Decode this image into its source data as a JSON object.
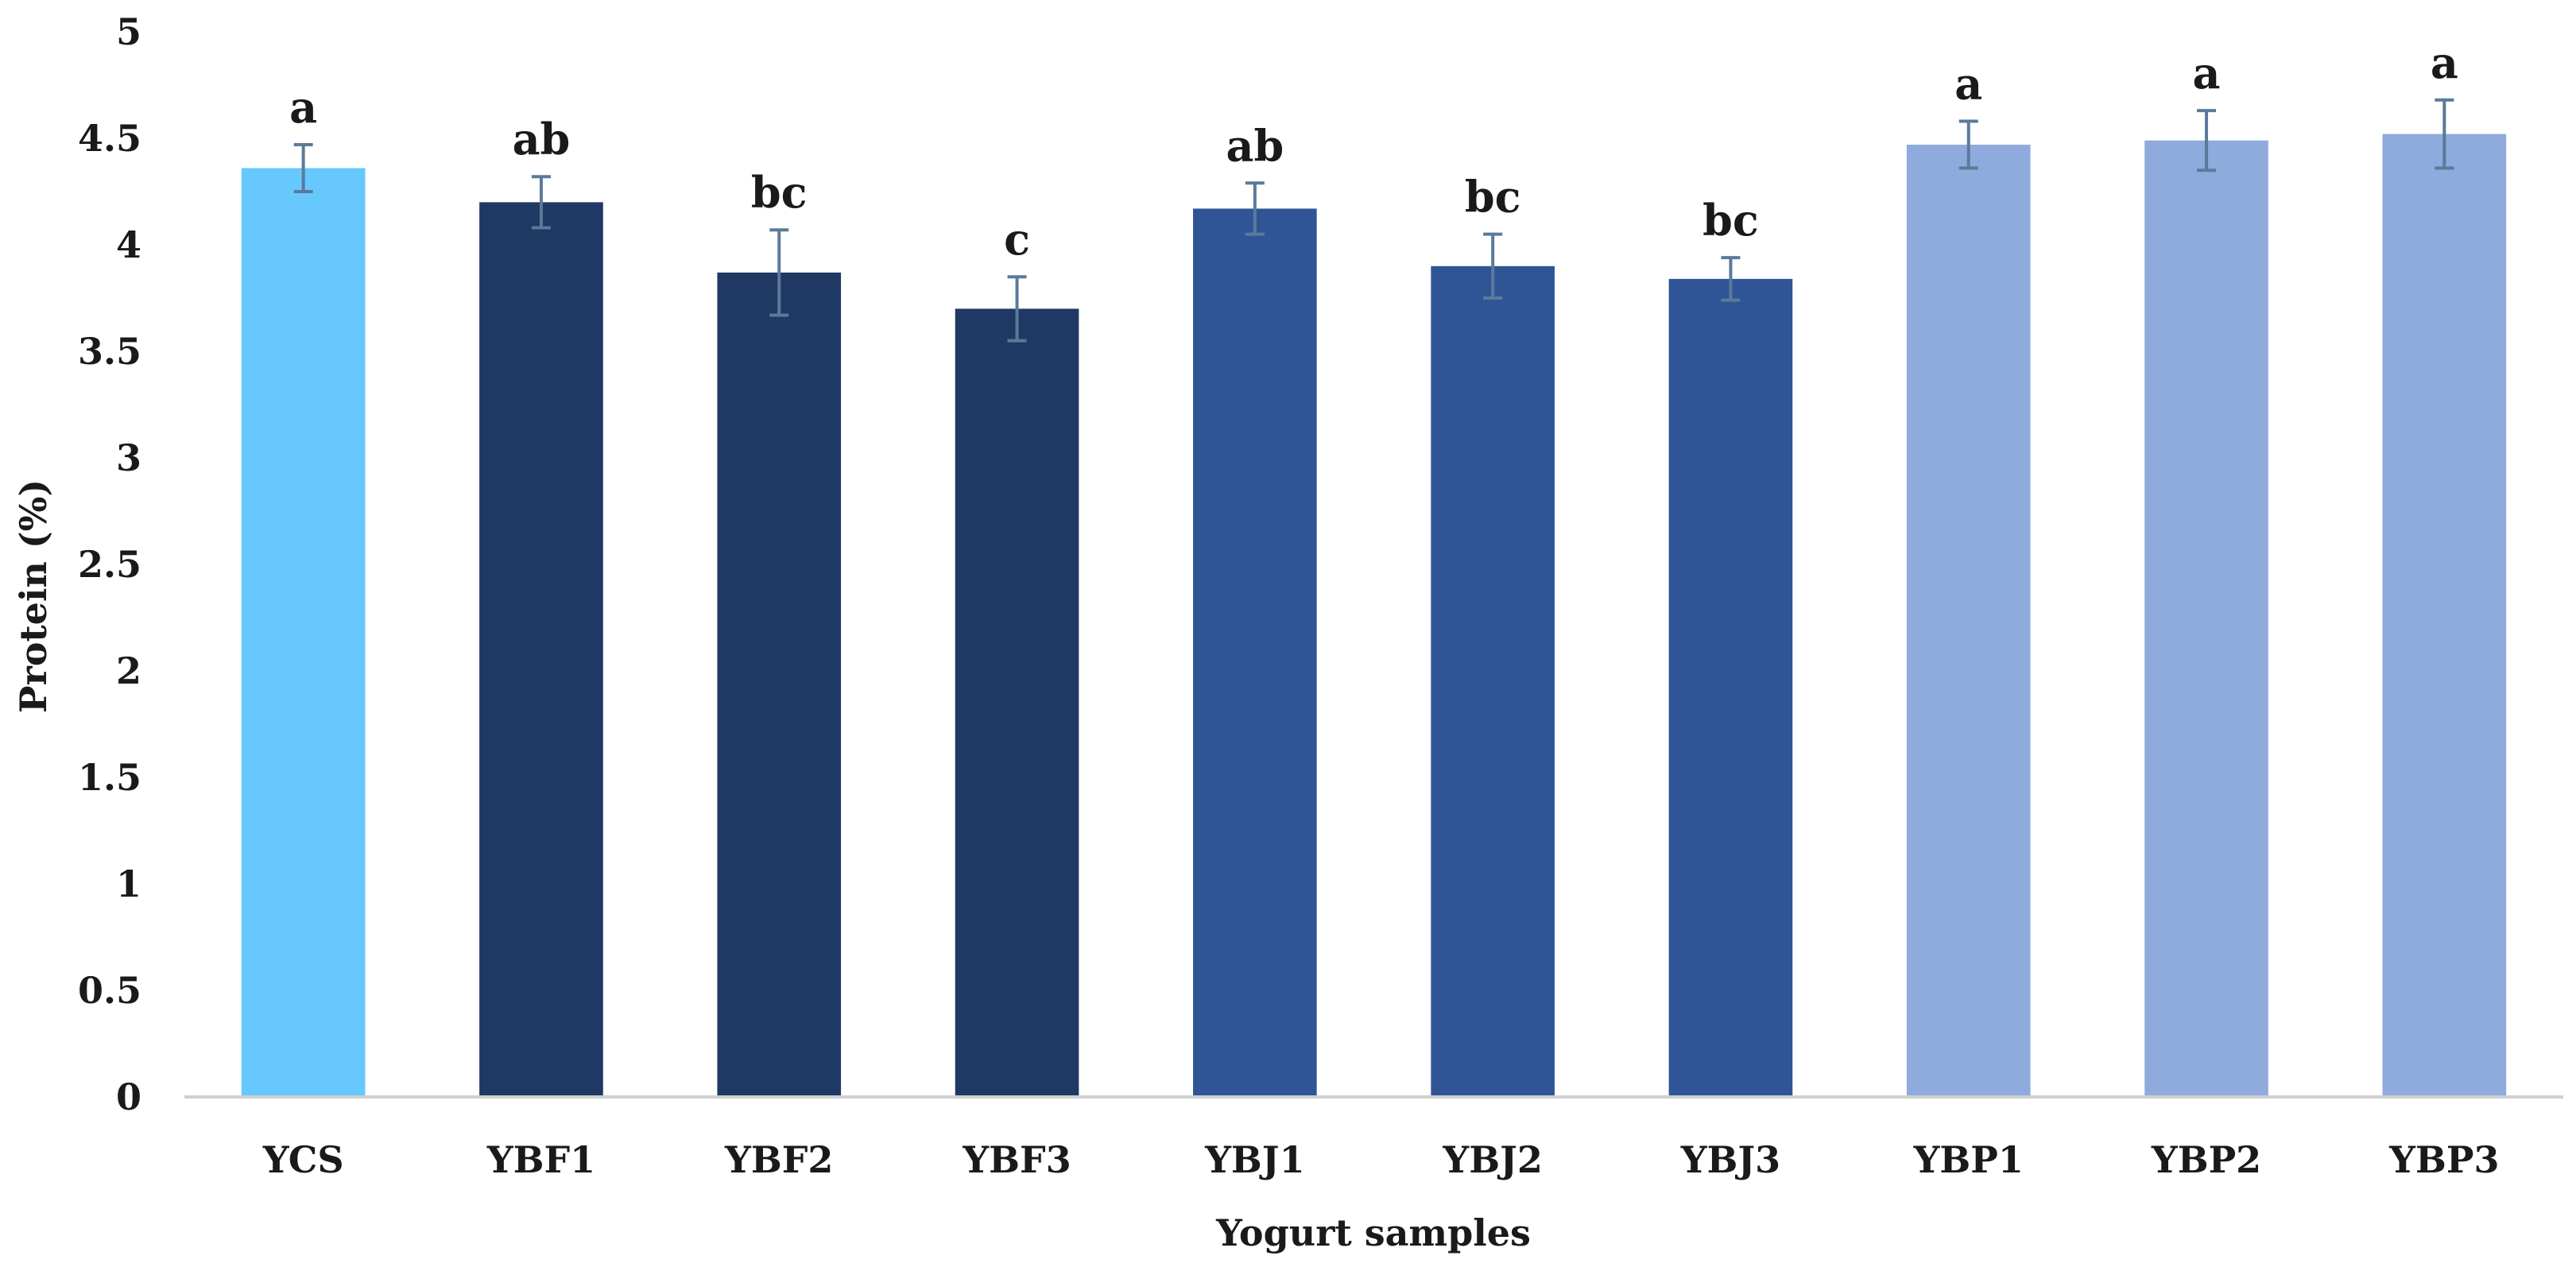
{
  "chart_data": {
    "type": "bar",
    "title": "",
    "xlabel": "Yogurt samples",
    "ylabel": "Protein  (%)",
    "ylim": [
      0,
      5
    ],
    "yticks": [
      "0",
      "0.5",
      "1",
      "1.5",
      "2",
      "2.5",
      "3",
      "3.5",
      "4",
      "4.5",
      "5"
    ],
    "grid": false,
    "legend": "none",
    "categories": [
      "YCS",
      "YBF1",
      "YBF2",
      "YBF3",
      "YBJ1",
      "YBJ2",
      "YBJ3",
      "YBP1",
      "YBP2",
      "YBP3"
    ],
    "values": [
      4.36,
      4.2,
      3.87,
      3.7,
      4.17,
      3.9,
      3.84,
      4.47,
      4.49,
      4.52
    ],
    "errors": [
      0.11,
      0.12,
      0.2,
      0.15,
      0.12,
      0.15,
      0.1,
      0.11,
      0.14,
      0.16
    ],
    "significance": [
      "a",
      "ab",
      "bc",
      "c",
      "ab",
      "bc",
      "bc",
      "a",
      "a",
      "a"
    ],
    "colors": [
      "#66c8fd",
      "#203864",
      "#203864",
      "#203864",
      "#2f5597",
      "#2f5597",
      "#2f5597",
      "#8faadc",
      "#8faadc",
      "#8faadc"
    ],
    "error_color": "#5b7a9a",
    "axis_color": "#d0d0d0"
  }
}
